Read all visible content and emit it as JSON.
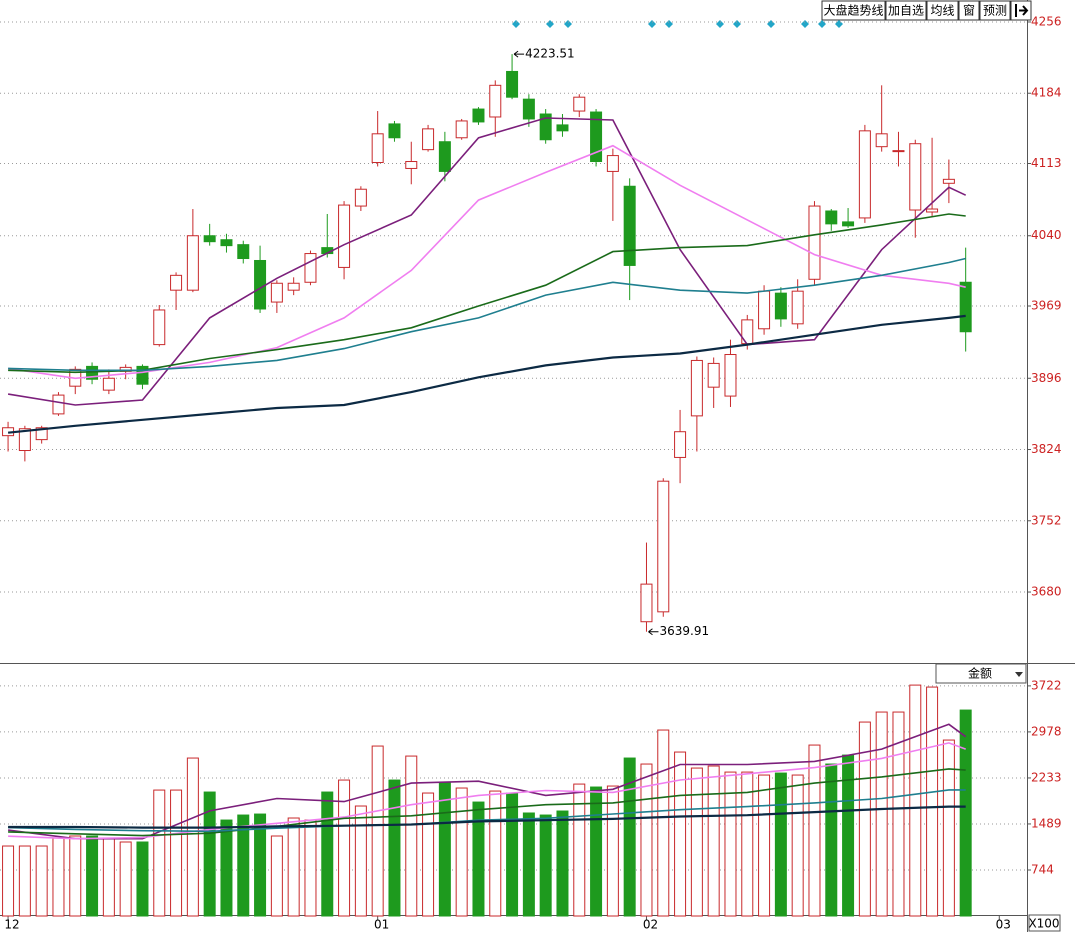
{
  "toolbar": {
    "buttons": [
      "大盘趋势线",
      "加自选",
      "均线",
      "窗",
      "预测"
    ]
  },
  "chart_data": [
    {
      "type": "candlestick",
      "open": [
        3838,
        3823,
        3834,
        3860,
        3888,
        3908,
        3884,
        3903,
        3908,
        3930,
        3985,
        3985,
        4040,
        4036,
        4031,
        4015,
        3973,
        3985,
        3993,
        4028,
        4008,
        4070,
        4114,
        4153,
        4108,
        4127,
        4135,
        4139,
        4168,
        4160,
        4206,
        4178,
        4163,
        4152,
        4166,
        4165,
        4105,
        4090,
        3650,
        3660,
        3816,
        3858,
        3887,
        3878,
        3931,
        3946,
        3982,
        3951,
        3996,
        4065,
        4054,
        4058,
        4130,
        4125,
        4066,
        4064,
        4093,
        3993
      ],
      "high": [
        3852,
        3848,
        3848,
        3882,
        3908,
        3912,
        3905,
        3910,
        3910,
        3970,
        4003,
        4067,
        4052,
        4042,
        4035,
        4030,
        3995,
        3998,
        4025,
        4062,
        4075,
        4090,
        4166,
        4156,
        4135,
        4152,
        4145,
        4158,
        4170,
        4197,
        4223.51,
        4183,
        4168,
        4163,
        4183,
        4168,
        4128,
        4098,
        3730,
        3795,
        3864,
        3918,
        3917,
        3935,
        3960,
        3990,
        3988,
        3996,
        4075,
        4067,
        4068,
        4152,
        4192,
        4145,
        4137,
        4139,
        4117,
        4028
      ],
      "low": [
        3822,
        3812,
        3830,
        3858,
        3880,
        3890,
        3880,
        3895,
        3885,
        3928,
        3965,
        3983,
        4030,
        4023,
        4012,
        3962,
        3962,
        3980,
        3990,
        4018,
        3996,
        4065,
        4110,
        4135,
        4092,
        4125,
        4095,
        4137,
        4152,
        4140,
        4178,
        4150,
        4133,
        4140,
        4160,
        4110,
        4055,
        3975,
        3639.91,
        3655,
        3790,
        3822,
        3866,
        3867,
        3925,
        3940,
        3948,
        3946,
        3990,
        4045,
        4048,
        4053,
        4125,
        4110,
        4038,
        4060,
        4073,
        3923
      ],
      "close": [
        3846,
        3845,
        3846,
        3879,
        3905,
        3895,
        3896,
        3907,
        3890,
        3965,
        4000,
        4040,
        4034,
        4030,
        4017,
        3966,
        3992,
        3992,
        4022,
        4022,
        4071,
        4087,
        4143,
        4139,
        4115,
        4148,
        4105,
        4156,
        4155,
        4192,
        4180,
        4158,
        4137,
        4146,
        4180,
        4115,
        4121,
        4010,
        3688,
        3792,
        3842,
        3914,
        3911,
        3920,
        3955,
        3984,
        3956,
        3984,
        4070,
        4052,
        4050,
        4146,
        4143,
        4126,
        4133,
        4067,
        4097,
        3943
      ],
      "up_color": "#c8292b",
      "down_color": "#1e9a1e",
      "ylim": [
        3608.3,
        4278.2
      ],
      "yticks": [
        3680,
        3752,
        3824,
        3896,
        3969,
        4040,
        4113,
        4184,
        4256
      ],
      "xlim": [
        -0.48,
        60.65
      ],
      "xticks": [
        {
          "value": 0,
          "label": "12"
        },
        {
          "value": 22,
          "label": "01"
        },
        {
          "value": 38,
          "label": "02"
        },
        {
          "value": 59,
          "label": "03"
        }
      ],
      "grid": true,
      "series": [
        {
          "color": "#7b1f7b",
          "x": [
            0,
            4,
            8,
            12,
            16,
            20,
            24,
            28,
            32,
            36,
            40,
            44,
            48,
            52,
            56,
            57
          ],
          "values": [
            3880,
            3869,
            3874,
            3957,
            3997,
            4031,
            4061,
            4139,
            4159,
            4157,
            4026,
            3930,
            3935,
            4026,
            4089,
            4081
          ]
        },
        {
          "color": "#f07ef0",
          "x": [
            0,
            4,
            8,
            12,
            16,
            20,
            24,
            28,
            32,
            36,
            40,
            44,
            48,
            52,
            56,
            57
          ],
          "values": [
            3906,
            3896,
            3902,
            3912,
            3927,
            3957,
            4005,
            4076,
            4104,
            4131,
            4091,
            4056,
            4021,
            4000,
            3992,
            3988
          ]
        },
        {
          "color": "#1a6b1a",
          "x": [
            0,
            4,
            8,
            12,
            16,
            20,
            24,
            28,
            32,
            36,
            40,
            44,
            48,
            52,
            56,
            57
          ],
          "values": [
            3904,
            3902,
            3904,
            3916,
            3925,
            3935,
            3947,
            3969,
            3990,
            4024,
            4028,
            4030,
            4041,
            4051,
            4062,
            4060
          ]
        },
        {
          "color": "#1f7f8f",
          "x": [
            0,
            4,
            8,
            12,
            16,
            20,
            24,
            28,
            32,
            36,
            40,
            44,
            48,
            52,
            56,
            57
          ],
          "values": [
            3906,
            3904,
            3904,
            3908,
            3914,
            3926,
            3943,
            3957,
            3980,
            3993,
            3985,
            3982,
            3990,
            4000,
            4013,
            4017
          ]
        },
        {
          "color": "#0c2a44",
          "x": [
            0,
            4,
            8,
            12,
            16,
            20,
            24,
            28,
            32,
            36,
            40,
            44,
            48,
            52,
            56,
            57
          ],
          "values": [
            3841,
            3848,
            3854,
            3860,
            3866,
            3869,
            3882,
            3897,
            3909,
            3917,
            3921,
            3930,
            3940,
            3950,
            3957,
            3959
          ]
        }
      ]
    },
    {
      "type": "bar",
      "values": [
        1132,
        1132,
        1132,
        1261,
        1294,
        1294,
        1261,
        1197,
        1197,
        2037,
        2037,
        2555,
        2005,
        1552,
        1633,
        1649,
        1294,
        1585,
        1552,
        2005,
        2199,
        1779,
        2749,
        2199,
        2587,
        1989,
        2167,
        2070,
        1843,
        2021,
        1989,
        1666,
        1633,
        1698,
        2134,
        2086,
        2102,
        2555,
        2458,
        3008,
        2652,
        2393,
        2426,
        2328,
        2328,
        2280,
        2312,
        2280,
        2765,
        2458,
        2603,
        3137,
        3299,
        3299,
        3735,
        3703,
        2846,
        3331
      ],
      "ylim": [
        0,
        4060
      ],
      "yticks": [
        744,
        1489,
        2233,
        2978,
        3722
      ],
      "xlim": [
        -0.48,
        60.65
      ],
      "grid": true,
      "selector": "金额",
      "unit_label": "X100",
      "series": [
        {
          "color": "#7b1f7b",
          "x": [
            0,
            4,
            8,
            12,
            16,
            20,
            24,
            28,
            32,
            36,
            40,
            44,
            48,
            52,
            56,
            57
          ],
          "values": [
            1390,
            1250,
            1250,
            1700,
            1900,
            1850,
            2150,
            2180,
            1950,
            2050,
            2450,
            2450,
            2500,
            2700,
            3100,
            2900
          ]
        },
        {
          "color": "#f07ef0",
          "x": [
            0,
            4,
            8,
            12,
            16,
            20,
            24,
            28,
            32,
            36,
            40,
            44,
            48,
            52,
            56,
            57
          ],
          "values": [
            1290,
            1250,
            1270,
            1400,
            1500,
            1600,
            1800,
            1950,
            2030,
            2000,
            2200,
            2300,
            2400,
            2550,
            2800,
            2700
          ]
        },
        {
          "color": "#1a6b1a",
          "x": [
            0,
            4,
            8,
            12,
            16,
            20,
            24,
            28,
            32,
            36,
            40,
            44,
            48,
            52,
            56,
            57
          ],
          "values": [
            1360,
            1330,
            1300,
            1340,
            1450,
            1580,
            1620,
            1720,
            1800,
            1830,
            1950,
            2000,
            2150,
            2250,
            2380,
            2360
          ]
        },
        {
          "color": "#1f7f8f",
          "x": [
            0,
            4,
            8,
            12,
            16,
            20,
            24,
            28,
            32,
            36,
            40,
            44,
            48,
            52,
            56,
            57
          ],
          "values": [
            1430,
            1400,
            1380,
            1370,
            1420,
            1460,
            1480,
            1550,
            1580,
            1650,
            1720,
            1770,
            1830,
            1900,
            2040,
            2040
          ]
        },
        {
          "color": "#0c2a44",
          "x": [
            0,
            4,
            8,
            12,
            16,
            20,
            24,
            28,
            32,
            36,
            40,
            44,
            48,
            52,
            56,
            57
          ],
          "values": [
            1440,
            1440,
            1430,
            1430,
            1450,
            1460,
            1480,
            1530,
            1550,
            1570,
            1610,
            1630,
            1680,
            1730,
            1770,
            1770
          ]
        }
      ]
    }
  ]
}
